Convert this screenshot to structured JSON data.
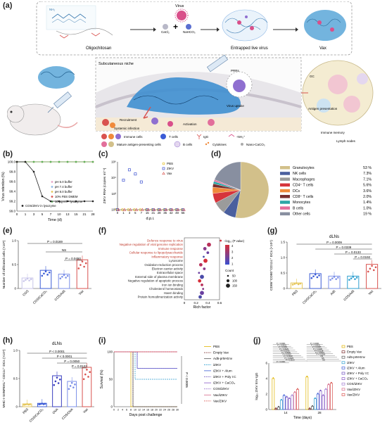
{
  "panels": {
    "a": "(a)",
    "b": "(b)",
    "c": "(c)",
    "d": "(d)",
    "e": "(e)",
    "f": "(f)",
    "g": "(g)",
    "h": "(h)",
    "i": "(i)",
    "j": "(j)"
  },
  "panel_a": {
    "top": {
      "oligo": "Oligochitosan",
      "virus": "Virus",
      "cacl2": "CaCl₂",
      "nahco3": "NaHCO₃",
      "entrapped": "Entrapped live virus",
      "vax": "Vax"
    },
    "scene": {
      "niche": "Subcutaneous niche",
      "prrs": "PRRs",
      "virus_uptake": "Virus uptake",
      "recruitment": "Recruitment",
      "systemic": "Systemic infection",
      "activation": "Activation",
      "gc": "GC",
      "antigen_pres": "Antigen presentation",
      "immune_memory": "Immune memory",
      "lymph": "Lymph nodes"
    },
    "legend": {
      "immune": "Immune cells",
      "tcells": "T cells",
      "igg": "IgG",
      "nh3": "-NH₃⁺",
      "mature": "Mature antigen-presenting cells",
      "bcells": "B cells",
      "cyto": "Cytokines",
      "nano": "Nano-CaCO₃"
    }
  },
  "chart_data": [
    {
      "panel": "b",
      "type": "line",
      "xlabel": "Time (d)",
      "ylabel": "Virus retention (%)",
      "xlim": [
        0,
        28
      ],
      "ylim": [
        99.0,
        100.0
      ],
      "xticks": [
        "0",
        "1",
        "3",
        "5",
        "7",
        "10",
        "13",
        "15",
        "21",
        "28"
      ],
      "yticks": [
        "99.0",
        "99.2",
        "99.4",
        "99.6",
        "99.8",
        "100.0"
      ],
      "x": [
        0,
        1,
        3,
        5,
        7,
        10,
        13,
        15,
        21,
        28
      ],
      "series": [
        {
          "name": "pH 5.0 buffer",
          "color": "#e8a5c8",
          "values": [
            100,
            100,
            100,
            100,
            100,
            100,
            100,
            100,
            100,
            100
          ]
        },
        {
          "name": "pH 7.4 buffer",
          "color": "#8fb8e6",
          "values": [
            100,
            100,
            100,
            100,
            100,
            100,
            100,
            100,
            100,
            100
          ]
        },
        {
          "name": "pH 8.0 buffer",
          "color": "#e6c75a",
          "values": [
            100,
            100,
            100,
            100,
            100,
            100,
            100,
            100,
            100,
            100
          ]
        },
        {
          "name": "10% FBS DMEM",
          "color": "#d9534f",
          "values": [
            100,
            100,
            100,
            100,
            100,
            100,
            100,
            100,
            100,
            100
          ]
        },
        {
          "name": "10 μg ml⁻¹ lysozyme",
          "color": "#5cb85c",
          "values": [
            100,
            100,
            100,
            100,
            100,
            100,
            100,
            100,
            100,
            100
          ]
        },
        {
          "name": "COS/ZIKV in lysozyme",
          "color": "#222222",
          "values": [
            100,
            100,
            99.8,
            99.3,
            99.2,
            99.2,
            99.2,
            99.2,
            99.2,
            99.2
          ]
        }
      ]
    },
    {
      "panel": "c",
      "type": "scatter",
      "xlabel": "d.p.i.",
      "ylabel": "ZIKV RNA (copies ml⁻¹)",
      "xticks": [
        "0",
        "1",
        "3",
        "5",
        "7",
        "15",
        "21",
        "28",
        "35",
        "42",
        "49",
        "56"
      ],
      "yticks": [
        "10⁰",
        "10²",
        "10⁴",
        "10⁶"
      ],
      "series": [
        {
          "name": "PBS",
          "color": "#e0b400",
          "values": [
            1,
            1,
            1,
            1,
            1,
            1,
            1,
            1,
            1,
            1,
            1,
            1
          ]
        },
        {
          "name": "ZIKV",
          "color": "#3a4fd0",
          "values": [
            1,
            5000,
            100000,
            30000,
            3000,
            1,
            1,
            1,
            1,
            1,
            1,
            1
          ]
        },
        {
          "name": "Vax",
          "color": "#d9534f",
          "values": [
            1,
            1,
            1,
            1,
            1,
            1,
            1,
            1,
            1,
            1,
            1,
            1
          ]
        }
      ]
    },
    {
      "panel": "d",
      "type": "pie",
      "categories": [
        "Granulocytes",
        "NK cells",
        "Macrophages",
        "CD4⁺ T cells",
        "DCs",
        "CD8⁺ T cells",
        "Monocytes",
        "B cells",
        "Other cells"
      ],
      "labels": [
        "53 %",
        "7.3%",
        "7.1%",
        "5.6%",
        "3.6%",
        "2.0%",
        "1.4%",
        "1.0%",
        "19 %"
      ],
      "values": [
        53,
        7.3,
        7.1,
        5.6,
        3.6,
        2.0,
        1.4,
        1.0,
        19
      ],
      "colors": [
        "#d2c08a",
        "#4a5f9e",
        "#9b9b9b",
        "#d6343b",
        "#f08a3b",
        "#7a2f2f",
        "#2ba6a6",
        "#e26f9b",
        "#888fa0"
      ]
    },
    {
      "panel": "e",
      "type": "bar",
      "ylabel": "Number of infiltrated cells (×10⁵)",
      "categories": [
        "COS",
        "COS/CaCO₃",
        "COS/Ad5",
        "Vax"
      ],
      "values": [
        0.22,
        0.38,
        0.3,
        0.6
      ],
      "ylim": [
        0,
        1.0
      ],
      "colors": [
        "#c9c6ea",
        "#3a5bd6",
        "#7b8fe8",
        "#d9534f"
      ],
      "stats": [
        "P = 0.0169",
        "NS",
        "P = 0.0450"
      ]
    },
    {
      "panel": "f",
      "type": "scatter",
      "xlabel": "Rich factor",
      "xticks": [
        "0",
        "0.2",
        "0.4",
        "0.6"
      ],
      "terms": [
        "Defence response to virus",
        "Negative regulation of viral genome replication",
        "Immune response",
        "Cellular response to lipopolysaccharide",
        "Inflammatory response",
        "Lysosome",
        "Oxidation-reduction process",
        "Electron carrier activity",
        "Extracellular space",
        "External side of plasma membrane",
        "Negative regulation of apoptotic process",
        "Iron ion binding",
        "Cholesterol homeostasis",
        "Haem binding",
        "Protein homodimerization activity"
      ],
      "values": [
        0.62,
        0.42,
        0.35,
        0.4,
        0.33,
        0.36,
        0.28,
        0.34,
        0.25,
        0.3,
        0.26,
        0.3,
        0.32,
        0.3,
        0.27
      ],
      "legend_title": "−log₁₀ (P value)",
      "count_title": "Count",
      "count_labels": [
        "50",
        "100",
        "150"
      ],
      "color_ticks": [
        "4",
        "3",
        "2",
        "1"
      ]
    },
    {
      "panel": "g",
      "type": "bar",
      "title": "dLNs",
      "ylabel": "CD86⁺CD80⁺CD11c⁺ DCs (×10⁴)",
      "categories": [
        "PBS",
        "COS/CaCO₃",
        "Ad5",
        "COS/Ad5",
        "Vax"
      ],
      "values": [
        0.18,
        0.48,
        0.4,
        0.4,
        0.78
      ],
      "ylim": [
        0,
        1.5
      ],
      "yticks": [
        "0",
        "0.5",
        "1.0",
        "1.5"
      ],
      "colors": [
        "#e6c75a",
        "#3a5bd6",
        "#7b8fe8",
        "#2e9fd0",
        "#d9534f"
      ],
      "stats": [
        "P = 0.0009",
        "P = 0.0339",
        "P = 0.0133",
        "P = 0.0192"
      ]
    },
    {
      "panel": "h",
      "type": "bar",
      "title": "dLNs",
      "ylabel": "MHC-I-SIINFEKL⁺ CD11c⁺ DCs (×10⁴)",
      "categories": [
        "PBS",
        "COS/CaCO₃",
        "OVA",
        "COS/OVA",
        "Vax"
      ],
      "values": [
        0.05,
        0.06,
        0.55,
        0.45,
        0.7
      ],
      "ylim": [
        0,
        1.0
      ],
      "yticks": [
        "0",
        "0.5",
        "1.0"
      ],
      "colors": [
        "#e6c75a",
        "#3a5bd6",
        "#3a3fc0",
        "#7b8fe8",
        "#d9534f"
      ],
      "stats": [
        "P < 0.0001",
        "P < 0.0001",
        "P = 0.0050",
        "P = 0.0123"
      ]
    },
    {
      "panel": "i",
      "type": "line",
      "xlabel": "Days post challenge",
      "ylabel": "Survival (%)",
      "xticks": [
        "0",
        "2",
        "4",
        "6",
        "8",
        "10",
        "12",
        "14",
        "16",
        "18",
        "20",
        "22",
        "24",
        "26",
        "28",
        "30"
      ],
      "yticks": [
        "0",
        "50",
        "100"
      ],
      "ylim": [
        0,
        100
      ],
      "xlim": [
        0,
        30
      ],
      "stats": "P < 0.0005",
      "series": [
        {
          "name": "PBS",
          "color": "#e0b400"
        },
        {
          "name": "Empty Vax",
          "color": "#7a2a2a"
        },
        {
          "name": "Ad5-prM-Env",
          "color": "#555555"
        },
        {
          "name": "iZIKV",
          "color": "#2e9fd0"
        },
        {
          "name": "iZIKV + Alum",
          "color": "#3a5bd6"
        },
        {
          "name": "iZIKV + Poly I:C",
          "color": "#6f4fc0"
        },
        {
          "name": "iZIKV + CaCO₃",
          "color": "#8a5ac8"
        },
        {
          "name": "COS/iZIKV",
          "color": "#a07ad0"
        },
        {
          "name": "Vax/iZIKV",
          "color": "#d66a8a"
        },
        {
          "name": "Vax/ZIKV",
          "color": "#d9534f"
        }
      ]
    },
    {
      "panel": "j",
      "type": "bar",
      "xlabel": "Time (days)",
      "ylabel": "log₁₀ ZIKV Env IgG",
      "categories": [
        "14",
        "28"
      ],
      "yticks": [
        "0",
        "2",
        "4",
        "6"
      ],
      "series": [
        {
          "name": "PBS",
          "color": "#e0b400",
          "values": [
            4.0,
            4.2
          ]
        },
        {
          "name": "Empty Vax",
          "color": "#7a2a2a",
          "values": [
            0.1,
            0.1
          ]
        },
        {
          "name": "Ad5-prM-Env",
          "color": "#555555",
          "values": [
            0.3,
            0.4
          ]
        },
        {
          "name": "iZIKV",
          "color": "#2e9fd0",
          "values": [
            1.2,
            1.4
          ]
        },
        {
          "name": "iZIKV + Alum",
          "color": "#3a5bd6",
          "values": [
            1.8,
            2.0
          ]
        },
        {
          "name": "iZIKV + Poly I:C",
          "color": "#6f4fc0",
          "values": [
            1.6,
            2.4
          ]
        },
        {
          "name": "iZIKV + CaCO₃",
          "color": "#8a5ac8",
          "values": [
            1.4,
            1.8
          ]
        },
        {
          "name": "COS/iZIKV",
          "color": "#a07ad0",
          "values": [
            1.8,
            2.6
          ]
        },
        {
          "name": "Vax/iZIKV",
          "color": "#d66a8a",
          "values": [
            2.2,
            3.2
          ]
        },
        {
          "name": "Vax/ZIKV",
          "color": "#d9534f",
          "values": [
            2.6,
            3.4
          ]
        }
      ],
      "stats": [
        "P < 0.0001",
        "P < 0.0001",
        "P < 0.0001",
        "P = 0.0029",
        "P = 0.0075",
        "P = 0.0006",
        "P = 0.0357",
        "P = 0.0028",
        "P = 0.0026",
        "P = 0.0103",
        "P < 0.0001",
        "P < 0.0001",
        "P < 0.0001",
        "P = 0.0005",
        "P = 0.0406",
        "P = 0.0218",
        "P = 0.0019",
        "P = 0.0059",
        "NS",
        "NS",
        "NS"
      ]
    }
  ]
}
